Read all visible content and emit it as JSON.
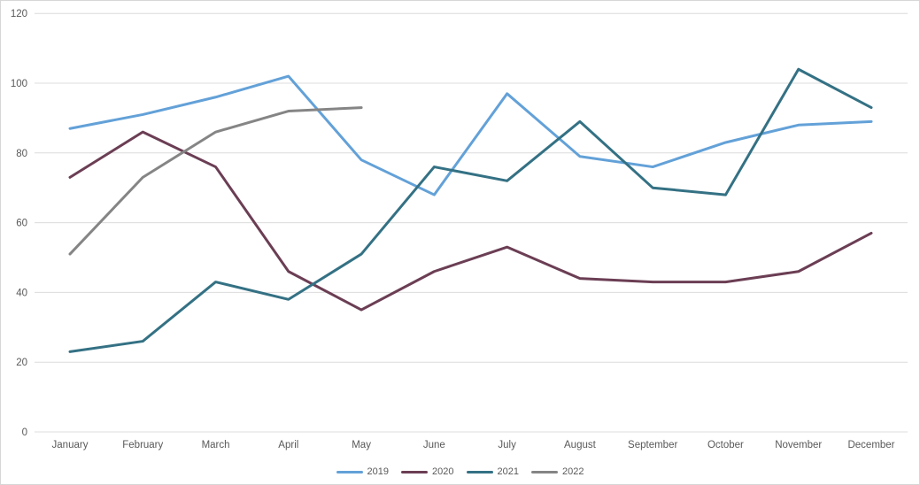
{
  "chart_data": {
    "type": "line",
    "title": "",
    "categories": [
      "January",
      "February",
      "March",
      "April",
      "May",
      "June",
      "July",
      "August",
      "September",
      "October",
      "November",
      "December"
    ],
    "series": [
      {
        "name": "2019",
        "color": "#63A1D8",
        "values": [
          87,
          91,
          96,
          102,
          78,
          68,
          97,
          79,
          76,
          83,
          88,
          89
        ]
      },
      {
        "name": "2020",
        "color": "#6B3E54",
        "values": [
          73,
          86,
          76,
          46,
          35,
          46,
          53,
          44,
          43,
          43,
          46,
          57
        ]
      },
      {
        "name": "2021",
        "color": "#347184",
        "values": [
          23,
          26,
          43,
          38,
          51,
          76,
          72,
          89,
          70,
          68,
          104,
          93
        ]
      },
      {
        "name": "2022",
        "color": "#858585",
        "values": [
          51,
          73,
          86,
          92,
          93,
          null,
          null,
          null,
          null,
          null,
          null,
          null
        ]
      }
    ],
    "y_axis": {
      "min": 0,
      "max": 120,
      "step": 20,
      "ticks": [
        120,
        100,
        80,
        60,
        40,
        20,
        0
      ]
    },
    "x_axis": {
      "label": ""
    },
    "grid": true,
    "gridline_color": "#dcdcdc",
    "tick_label_color": "#595959",
    "legend_position": "bottom",
    "background_color": "#ffffff"
  }
}
